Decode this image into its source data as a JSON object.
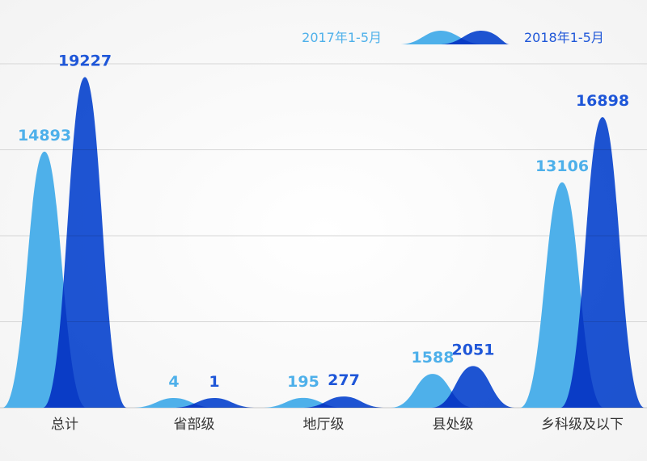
{
  "chart_data": {
    "type": "area",
    "title": "",
    "xlabel": "",
    "ylabel": "",
    "categories": [
      "总计",
      "省部级",
      "地厅级",
      "县处级",
      "乡科级及以下"
    ],
    "series": [
      {
        "name": "2017年1-5月",
        "color": "#4eb0ea",
        "values": [
          14893,
          4,
          195,
          1588,
          13106
        ]
      },
      {
        "name": "2018年1-5月",
        "color": "#1e56d8",
        "values": [
          19227,
          1,
          277,
          2051,
          16898
        ]
      }
    ],
    "ylim": [
      0,
      20000
    ],
    "grid": true,
    "legend": "top-right"
  }
}
